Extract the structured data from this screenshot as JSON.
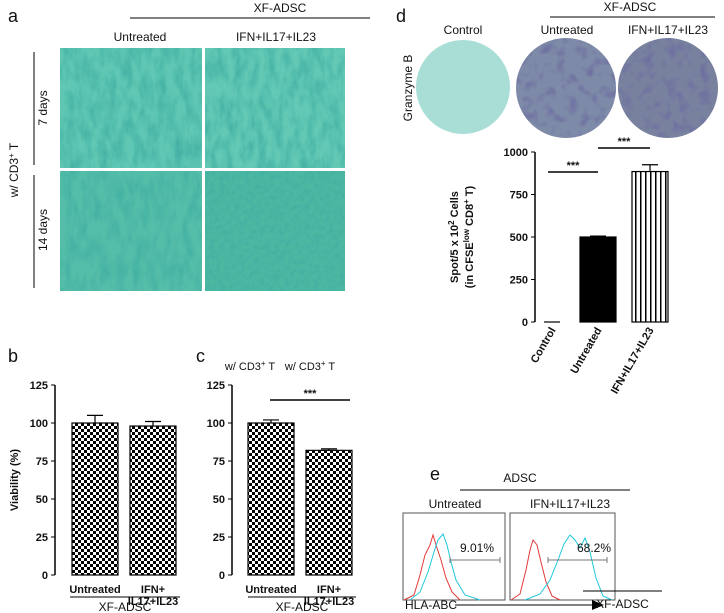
{
  "panel_labels": [
    "a",
    "b",
    "c",
    "d",
    "e"
  ],
  "panel_a": {
    "group_label": "XF-ADSC",
    "columns": [
      "Untreated",
      "IFN+IL17+IL23"
    ],
    "rows": [
      "7 days",
      "14 days"
    ],
    "side_label": [
      "w/ CD3",
      "+",
      " T"
    ]
  },
  "panel_d_images": {
    "row_label": "Granzyme B",
    "group_label": "XF-ADSC",
    "columns": [
      "Control",
      "Untreated",
      "IFN+IL17+IL23"
    ]
  },
  "panel_e": {
    "group_label": "ADSC",
    "columns": [
      "Untreated",
      "IFN+IL17+IL23"
    ],
    "gates": [
      "9.01%",
      "68.2%"
    ],
    "x_label": "HLA-ABC"
  },
  "chart_data": [
    {
      "type": "bar",
      "title": [
        "w/ CD3",
        "+",
        " T"
      ],
      "ylabel": "Viability (%)",
      "categories": [
        "Untreated",
        "IFN+\nIL17+IL23"
      ],
      "values": [
        100,
        98
      ],
      "errors": [
        5,
        3
      ],
      "fills": [
        "checkerboard",
        "checkerboard"
      ],
      "group_label": "XF-ADSC",
      "ylim": [
        0,
        125
      ],
      "yticks": [
        0,
        25,
        50,
        75,
        100,
        125
      ]
    },
    {
      "type": "bar",
      "title": [
        "w/ CD3",
        "+",
        " T"
      ],
      "categories": [
        "Untreated",
        "IFN+\nIL17+IL23"
      ],
      "values": [
        100,
        82
      ],
      "errors": [
        2,
        1
      ],
      "fills": [
        "checkerboard",
        "checkerboard"
      ],
      "significance": [
        "***"
      ],
      "group_label": "XF-ADSC",
      "ylim": [
        0,
        125
      ],
      "yticks": [
        0,
        25,
        50,
        75,
        100,
        125
      ]
    },
    {
      "type": "bar",
      "ylabel": [
        [
          "Spot/5 x 10",
          "2",
          " Cells"
        ],
        [
          "(in CFSE",
          "low",
          " CD8",
          "+",
          " T)"
        ]
      ],
      "categories": [
        "Control",
        "Untreated",
        "IFN+IL17+IL23"
      ],
      "values": [
        0,
        500,
        885
      ],
      "errors": [
        0,
        5,
        40
      ],
      "fills": [
        "black",
        "black",
        "vertical-stripes"
      ],
      "significance": [
        "***",
        "***"
      ],
      "group_label": "XF-ADSC",
      "ylim": [
        0,
        1000
      ],
      "yticks": [
        0,
        250,
        500,
        750,
        1000
      ]
    }
  ]
}
